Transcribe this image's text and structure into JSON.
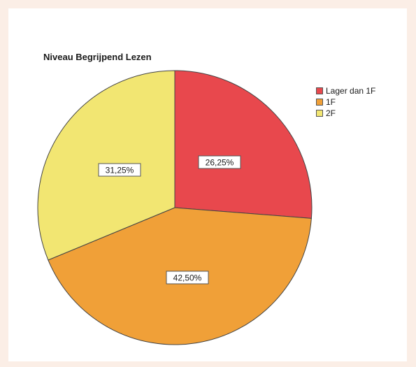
{
  "chart_data": {
    "type": "pie",
    "title": "Niveau Begrijpend Lezen",
    "legend_position": "top-right",
    "slices": [
      {
        "label": "Lager dan 1F",
        "value": 26.25,
        "data_label": "26,25%",
        "color": "#e8484d"
      },
      {
        "label": "1F",
        "value": 42.5,
        "data_label": "42,50%",
        "color": "#f0a038"
      },
      {
        "label": "2F",
        "value": 31.25,
        "data_label": "31,25%",
        "color": "#f2e672"
      }
    ]
  }
}
